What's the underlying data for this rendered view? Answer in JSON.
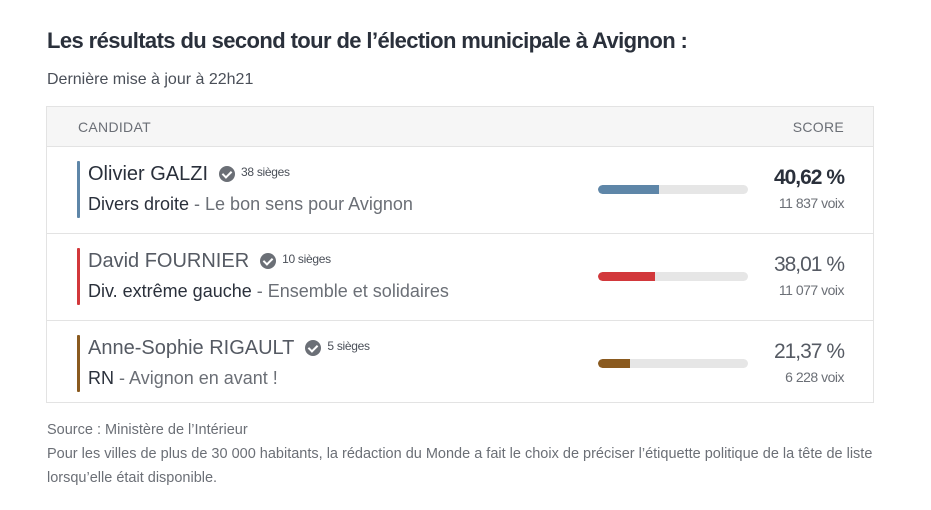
{
  "title": "Les résultats du second tour de l’élection municipale à Avignon :",
  "subtitle": "Dernière mise à jour à 22h21",
  "table": {
    "col_candidate": "CANDIDAT",
    "col_score": "SCORE",
    "rows": [
      {
        "name": "Olivier GALZI",
        "seats": "38 sièges",
        "party": "Divers droite",
        "separator": " - ",
        "list": "Le bon sens pour Avignon",
        "percent_text": "40,62 %",
        "percent": 40.62,
        "votes": "11 837 voix",
        "color": "#5e86a8",
        "winner": true
      },
      {
        "name": "David FOURNIER",
        "seats": "10 sièges",
        "party": "Div. extrême gauche",
        "separator": " - ",
        "list": "Ensemble et solidaires",
        "percent_text": "38,01 %",
        "percent": 38.01,
        "votes": "11 077 voix",
        "color": "#d2383b",
        "winner": false
      },
      {
        "name": "Anne-Sophie RIGAULT",
        "seats": "5 sièges",
        "party": "RN",
        "separator": " - ",
        "list": "Avignon en avant !",
        "percent_text": "21,37 %",
        "percent": 21.37,
        "votes": "6 228 voix",
        "color": "#8a5a1f",
        "winner": false
      }
    ]
  },
  "source": "Source : Ministère de l’Intérieur",
  "note": "Pour les villes de plus de 30 000 habitants, la rédaction du Monde a fait le choix de préciser l’étiquette politique de la tête de liste lorsqu’elle était disponible."
}
